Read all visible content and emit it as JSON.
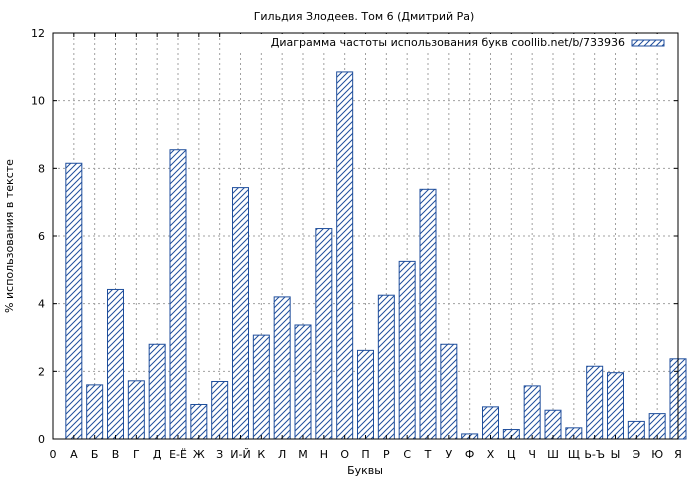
{
  "chart_data": {
    "type": "bar",
    "title": "Гильдия Злодеев. Том 6 (Дмитрий Ра)",
    "xlabel": "Буквы",
    "ylabel": "% использования в тексте",
    "ylim": [
      0,
      12
    ],
    "yticks": [
      0,
      2,
      4,
      6,
      8,
      10,
      12
    ],
    "grid": true,
    "legend_position": "top-right",
    "series": [
      {
        "name": "Диаграмма частоты использования букв coollib.net/b/733936",
        "color": "#1f4e9c",
        "values": [
          8.15,
          1.6,
          4.42,
          1.72,
          2.8,
          8.55,
          1.02,
          1.7,
          7.43,
          3.07,
          4.2,
          3.37,
          6.22,
          10.85,
          2.62,
          4.25,
          5.25,
          7.38,
          2.8,
          0.15,
          0.95,
          0.28,
          1.57,
          0.85,
          0.33,
          2.15,
          1.96,
          0.52,
          0.75,
          2.37
        ]
      }
    ],
    "categories": [
      "А",
      "Б",
      "В",
      "Г",
      "Д",
      "Е-Ё",
      "Ж",
      "З",
      "И-Й",
      "К",
      "Л",
      "М",
      "Н",
      "О",
      "П",
      "Р",
      "С",
      "Т",
      "У",
      "Ф",
      "Х",
      "Ц",
      "Ч",
      "Ш",
      "Щ",
      "Ь-Ъ",
      "Ы",
      "Э",
      "Ю",
      "Я"
    ],
    "x_tick_labels": [
      "0",
      "А",
      "Б",
      "В",
      "Г",
      "Д",
      "Е-Ё",
      "Ж",
      "З",
      "И-Й",
      "К",
      "Л",
      "М",
      "Н",
      "О",
      "П",
      "Р",
      "С",
      "Т",
      "У",
      "Ф",
      "Х",
      "Ц",
      "Ч",
      "Ш",
      "Щ",
      "Ь-Ъ",
      "Ы",
      "Э",
      "Ю",
      "Я"
    ]
  }
}
